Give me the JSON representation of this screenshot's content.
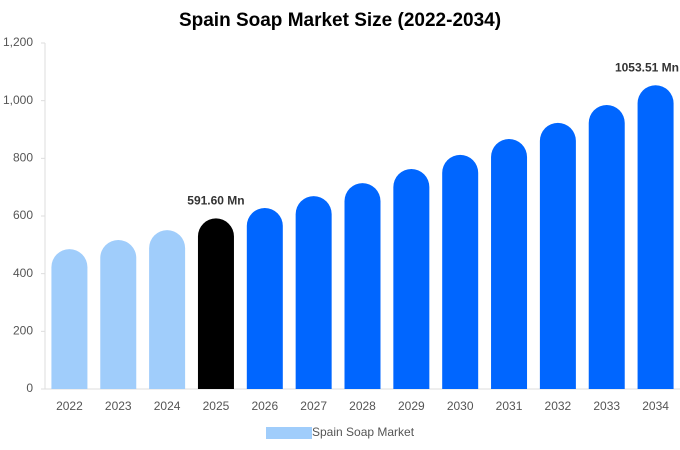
{
  "chart_data": {
    "type": "bar",
    "title": "Spain Soap Market Size (2022-2034)",
    "categories": [
      "2022",
      "2023",
      "2024",
      "2025",
      "2026",
      "2027",
      "2028",
      "2029",
      "2030",
      "2031",
      "2032",
      "2033",
      "2034"
    ],
    "series": [
      {
        "name": "Spain Soap Market",
        "color": "#a0cdfb",
        "values": [
          485,
          517,
          551,
          591.6,
          628,
          669,
          714,
          763,
          812,
          867,
          923,
          985,
          1053.51
        ],
        "value_labels": [
          null,
          null,
          null,
          "591.60 Mn",
          null,
          null,
          null,
          null,
          null,
          null,
          null,
          null,
          "1053.51 Mn"
        ],
        "colors": [
          "#a0cdfb",
          "#a0cdfb",
          "#a0cdfb",
          "#000000",
          "#0066ff",
          "#0066ff",
          "#0066ff",
          "#0066ff",
          "#0066ff",
          "#0066ff",
          "#0066ff",
          "#0066ff",
          "#0066ff"
        ]
      }
    ],
    "ylim": [
      0,
      1200
    ],
    "yticks": [
      0,
      200,
      400,
      600,
      800,
      {
        "value": 1000,
        "label": "1,000"
      },
      {
        "value": 1200,
        "label": "1,200"
      }
    ],
    "grid": false,
    "legend": "bottom"
  }
}
